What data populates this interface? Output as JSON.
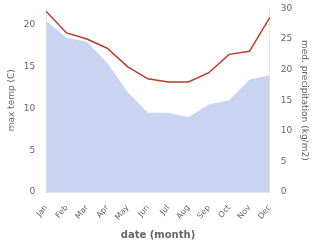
{
  "chart_data": {
    "type": "line",
    "xlabel": "date (month)",
    "ylabel": "max temp (C)",
    "y2label": "med. precipitation (kg/m2)",
    "categories": [
      "Jan",
      "Feb",
      "Mar",
      "Apr",
      "May",
      "Jun",
      "Jul",
      "Aug",
      "Sep",
      "Oct",
      "Nov",
      "Dec"
    ],
    "series": [
      {
        "type": "area",
        "color": "#c8d4f0",
        "axis": "y",
        "values": [
          20.5,
          18.5,
          18.0,
          15.5,
          12.0,
          9.5,
          9.5,
          9.0,
          10.5,
          11.0,
          13.5,
          14.0
        ]
      },
      {
        "type": "line",
        "color": "#c0392b",
        "axis": "y2",
        "values": [
          29.5,
          26.0,
          25.0,
          23.5,
          20.5,
          18.5,
          18.0,
          18.0,
          19.5,
          22.5,
          23.0,
          28.5
        ]
      }
    ],
    "ylim": [
      0,
      22
    ],
    "yticks": [
      0,
      5,
      10,
      15,
      20
    ],
    "y2lim": [
      0,
      30
    ],
    "y2ticks": [
      0,
      5,
      10,
      15,
      20,
      25,
      30
    ],
    "grid": false
  }
}
